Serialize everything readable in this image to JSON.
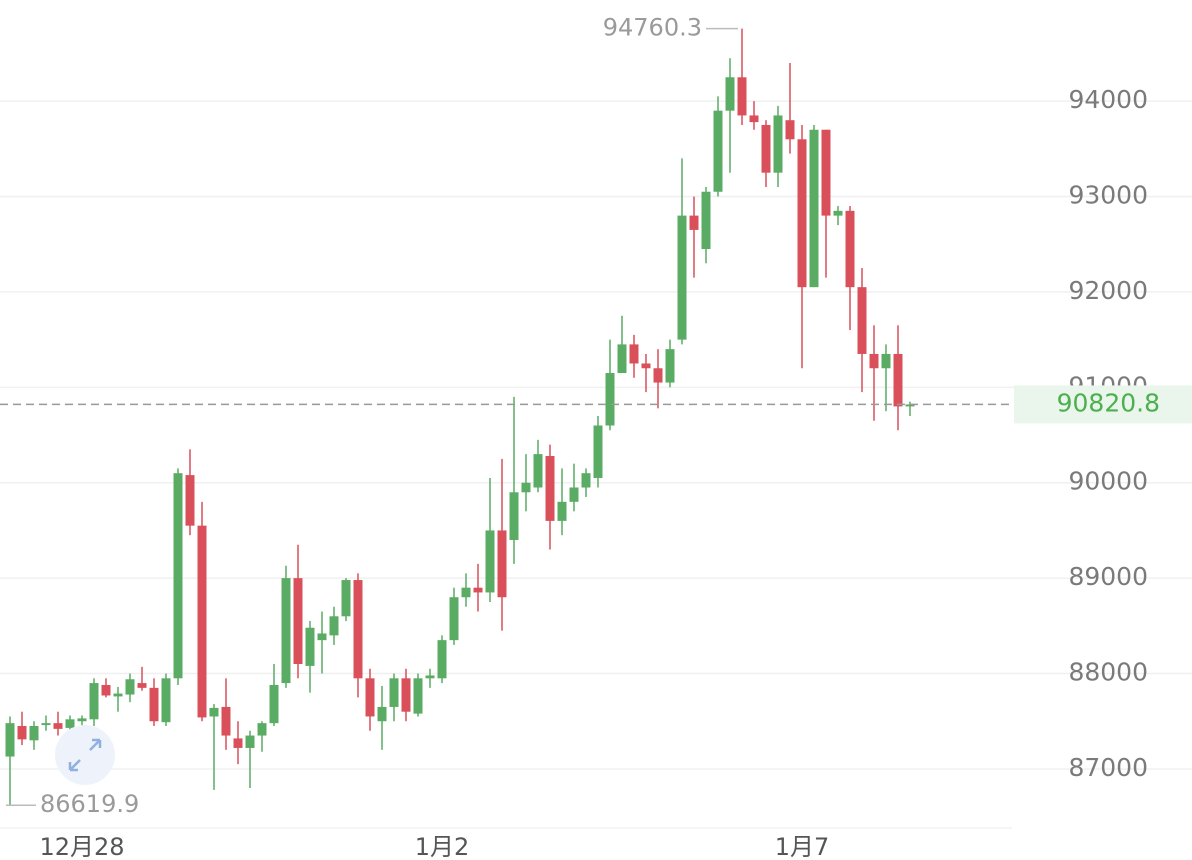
{
  "chart_data": {
    "type": "candlestick",
    "categories": [
      null,
      null,
      null,
      null,
      null,
      null,
      "12月28",
      null,
      null,
      null,
      null,
      null,
      null,
      null,
      null,
      null,
      null,
      null,
      null,
      null,
      null,
      null,
      null,
      null,
      null,
      null,
      null,
      null,
      null,
      null,
      null,
      null,
      null,
      null,
      null,
      null,
      "1月2",
      null,
      null,
      null,
      null,
      null,
      null,
      null,
      null,
      null,
      null,
      null,
      null,
      null,
      null,
      null,
      null,
      null,
      null,
      null,
      null,
      null,
      null,
      null,
      null,
      null,
      null,
      null,
      null,
      null,
      "1月7",
      null,
      null,
      null,
      null,
      null,
      null,
      null,
      null,
      null
    ],
    "open": [
      87130,
      87450,
      87300,
      87460,
      87480,
      87430,
      87500,
      87520,
      87880,
      87760,
      87780,
      87900,
      87850,
      87490,
      87950,
      90080,
      89550,
      87550,
      87650,
      87320,
      87220,
      87350,
      87480,
      87900,
      89000,
      88080,
      88350,
      88400,
      88600,
      88980,
      87950,
      87500,
      87650,
      87950,
      87580,
      87950,
      87950,
      88350,
      88800,
      88900,
      88850,
      89500,
      89400,
      89900,
      89950,
      90280,
      89600,
      89800,
      89950,
      90050,
      90600,
      91150,
      91450,
      91250,
      91200,
      91050,
      91500,
      92800,
      92450,
      93050,
      93900,
      94250,
      93850,
      93750,
      93250,
      93800,
      93600,
      92050,
      93700,
      92800,
      92850,
      92050,
      91350,
      91200,
      91350,
      90800
    ],
    "high": [
      87550,
      87600,
      87500,
      87560,
      87600,
      87560,
      87560,
      87950,
      87950,
      87860,
      88000,
      88070,
      87950,
      88000,
      90150,
      90350,
      89800,
      87680,
      87950,
      87500,
      87400,
      87500,
      88100,
      89130,
      89350,
      88550,
      88650,
      88700,
      89000,
      89050,
      88050,
      87870,
      88000,
      88050,
      88000,
      88050,
      88400,
      88900,
      89050,
      89150,
      90050,
      90250,
      90900,
      90300,
      90450,
      90400,
      90150,
      90200,
      90150,
      90700,
      91500,
      91750,
      91550,
      91350,
      91400,
      91500,
      93400,
      93000,
      93100,
      94050,
      94450,
      94760.3,
      94000,
      93800,
      93950,
      94400,
      93750,
      93750,
      93700,
      92900,
      92900,
      92250,
      91650,
      91450,
      91650,
      90850
    ],
    "low": [
      86619.9,
      87250,
      87200,
      87400,
      87350,
      87350,
      87430,
      87450,
      87750,
      87600,
      87700,
      87820,
      87450,
      87450,
      87880,
      89450,
      87500,
      86780,
      87200,
      87050,
      86800,
      87180,
      87450,
      87850,
      87950,
      87800,
      88000,
      88300,
      88550,
      87750,
      87400,
      87200,
      87500,
      87500,
      87550,
      87850,
      87900,
      88300,
      88700,
      88650,
      88750,
      88450,
      89150,
      89700,
      89900,
      89300,
      89450,
      89700,
      89850,
      89950,
      90550,
      91150,
      91100,
      90950,
      90780,
      91000,
      91450,
      92150,
      92300,
      93000,
      93250,
      93750,
      93700,
      93100,
      93100,
      93450,
      91200,
      92050,
      92150,
      92700,
      91600,
      90950,
      90650,
      90750,
      90550,
      90700
    ],
    "close": [
      87480,
      87310,
      87450,
      87480,
      87420,
      87520,
      87530,
      87900,
      87770,
      87790,
      87940,
      87850,
      87500,
      87950,
      90100,
      89550,
      87540,
      87640,
      87350,
      87220,
      87350,
      87480,
      87880,
      89000,
      88100,
      88480,
      88420,
      88600,
      88980,
      87950,
      87550,
      87650,
      87950,
      87600,
      87950,
      87980,
      88350,
      88800,
      88900,
      88850,
      89500,
      88800,
      89900,
      90000,
      90300,
      89600,
      89800,
      89950,
      90100,
      90600,
      91150,
      91450,
      91250,
      91200,
      91050,
      91400,
      92800,
      92650,
      93050,
      93900,
      94250,
      93850,
      93780,
      93250,
      93850,
      93600,
      92050,
      93700,
      92800,
      92850,
      92050,
      91350,
      91200,
      91350,
      90800,
      90820.8
    ],
    "up_color": "#5aab64",
    "down_color": "#d9505a",
    "ylim": [
      86360,
      95060
    ],
    "yticks": [
      87000,
      88000,
      89000,
      90000,
      91000,
      92000,
      93000,
      94000
    ],
    "grid": true,
    "last_price": 90820.8,
    "max_label": 94760.3,
    "min_label": 86619.9
  }
}
